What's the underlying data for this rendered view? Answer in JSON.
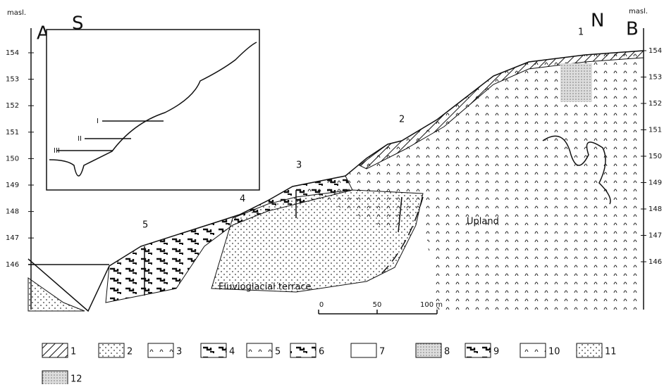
{
  "header": {
    "left_unit": "masl.",
    "right_unit": "masl.",
    "left_point": "A",
    "right_point": "B",
    "south": "S",
    "north": "N"
  },
  "left_axis": [
    "154",
    "153",
    "152",
    "151",
    "150",
    "149",
    "148",
    "147",
    "146"
  ],
  "right_axis": [
    "154",
    "153",
    "152",
    "151",
    "150",
    "149",
    "148",
    "147",
    "146"
  ],
  "inset": {
    "labels": [
      "I",
      "II",
      "III"
    ]
  },
  "profiles": [
    "1",
    "2",
    "3",
    "4",
    "5"
  ],
  "units": [
    "Upland",
    "Fluvioglacial terrace"
  ],
  "scale": [
    "0",
    "50",
    "100 m"
  ],
  "legend": [
    "1",
    "2",
    "3",
    "4",
    "5",
    "6",
    "7",
    "8",
    "9",
    "10",
    "11",
    "12"
  ]
}
